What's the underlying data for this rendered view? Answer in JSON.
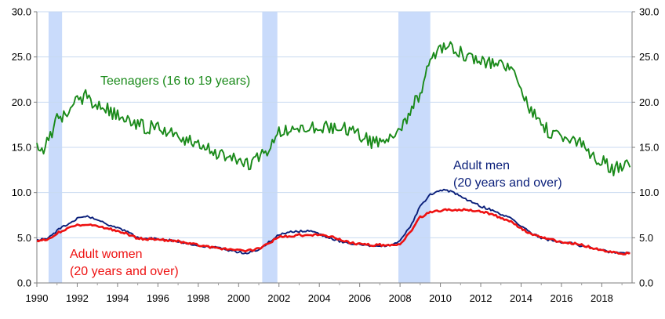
{
  "chart_data": {
    "type": "line",
    "title": "",
    "xlabel": "",
    "ylabel": "",
    "xlim": [
      1990,
      2019.5
    ],
    "ylim": [
      0,
      30
    ],
    "grid": true,
    "x_ticks": [
      1990,
      1992,
      1994,
      1996,
      1998,
      2000,
      2002,
      2004,
      2006,
      2008,
      2010,
      2012,
      2014,
      2016,
      2018
    ],
    "x_tick_labels": [
      "1990",
      "1992",
      "1994",
      "1996",
      "1998",
      "2000",
      "2002",
      "2004",
      "2006",
      "2008",
      "2010",
      "2012",
      "2014",
      "2016",
      "2018"
    ],
    "y_ticks": [
      0,
      5,
      10,
      15,
      20,
      25,
      30
    ],
    "y_tick_labels": [
      "0.0",
      "5.0",
      "10.0",
      "15.0",
      "20.0",
      "25.0",
      "30.0"
    ],
    "recessions": [
      {
        "start": 1990.58,
        "end": 1991.25
      },
      {
        "start": 2001.17,
        "end": 2001.92
      },
      {
        "start": 2007.92,
        "end": 2009.5
      }
    ],
    "series": [
      {
        "name": "Teenagers (16 to 19 years)",
        "color": "#1a8a1a",
        "x": [
          1990.0,
          1990.25,
          1990.5,
          1990.75,
          1991.0,
          1991.25,
          1991.5,
          1991.75,
          1992.0,
          1992.25,
          1992.5,
          1992.75,
          1993.0,
          1993.25,
          1993.5,
          1993.75,
          1994.0,
          1994.5,
          1995.0,
          1995.5,
          1996.0,
          1996.5,
          1997.0,
          1997.5,
          1998.0,
          1998.5,
          1999.0,
          1999.5,
          2000.0,
          2000.5,
          2001.0,
          2001.5,
          2002.0,
          2002.5,
          2003.0,
          2003.5,
          2004.0,
          2004.5,
          2005.0,
          2005.5,
          2006.0,
          2006.5,
          2007.0,
          2007.5,
          2008.0,
          2008.5,
          2009.0,
          2009.5,
          2010.0,
          2010.5,
          2011.0,
          2011.5,
          2012.0,
          2012.5,
          2013.0,
          2013.5,
          2014.0,
          2014.5,
          2015.0,
          2015.5,
          2016.0,
          2016.5,
          2017.0,
          2017.5,
          2018.0,
          2018.5,
          2019.0,
          2019.4
        ],
        "values": [
          15.0,
          14.5,
          15.5,
          16.8,
          18.0,
          18.5,
          19.0,
          19.5,
          20.0,
          20.5,
          20.8,
          20.0,
          19.8,
          19.5,
          19.2,
          18.8,
          18.5,
          17.8,
          17.5,
          17.2,
          17.2,
          16.8,
          16.2,
          15.8,
          15.2,
          14.8,
          14.2,
          14.0,
          13.4,
          13.2,
          13.8,
          14.8,
          16.5,
          17.0,
          17.2,
          17.5,
          17.0,
          17.2,
          17.4,
          17.0,
          16.5,
          15.6,
          15.8,
          16.0,
          16.5,
          19.0,
          21.0,
          24.5,
          26.2,
          26.0,
          25.5,
          25.0,
          24.8,
          24.2,
          24.0,
          23.5,
          21.5,
          19.0,
          17.5,
          16.5,
          16.0,
          16.0,
          15.5,
          14.0,
          13.5,
          12.5,
          13.0,
          12.8
        ]
      },
      {
        "name": "Adult men (20 years and over)",
        "color": "#0a1f7a",
        "x": [
          1990.0,
          1990.5,
          1991.0,
          1991.5,
          1992.0,
          1992.5,
          1993.0,
          1993.5,
          1994.0,
          1994.5,
          1995.0,
          1996.0,
          1997.0,
          1998.0,
          1999.0,
          2000.0,
          2000.5,
          2001.0,
          2001.5,
          2002.0,
          2002.5,
          2003.0,
          2003.5,
          2004.0,
          2004.5,
          2005.0,
          2005.5,
          2006.0,
          2006.5,
          2007.0,
          2007.5,
          2008.0,
          2008.5,
          2009.0,
          2009.5,
          2010.0,
          2010.5,
          2011.0,
          2011.5,
          2012.0,
          2012.5,
          2013.0,
          2013.5,
          2014.0,
          2014.5,
          2015.0,
          2015.5,
          2016.0,
          2016.5,
          2017.0,
          2017.5,
          2018.0,
          2018.5,
          2019.0,
          2019.4
        ],
        "values": [
          4.8,
          4.8,
          5.8,
          6.5,
          7.1,
          7.3,
          7.0,
          6.5,
          6.1,
          5.6,
          5.0,
          4.9,
          4.6,
          4.1,
          3.9,
          3.4,
          3.3,
          3.7,
          4.5,
          5.4,
          5.6,
          5.7,
          5.8,
          5.4,
          5.0,
          4.6,
          4.4,
          4.3,
          4.1,
          4.1,
          4.2,
          4.7,
          6.2,
          8.5,
          9.8,
          10.3,
          10.1,
          9.6,
          9.0,
          8.5,
          8.1,
          7.6,
          7.2,
          6.3,
          5.5,
          5.0,
          4.7,
          4.5,
          4.4,
          4.1,
          3.9,
          3.6,
          3.4,
          3.3,
          3.3
        ]
      },
      {
        "name": "Adult women (20 years and over)",
        "color": "#ee1111",
        "x": [
          1990.0,
          1990.5,
          1991.0,
          1991.5,
          1992.0,
          1992.5,
          1993.0,
          1993.5,
          1994.0,
          1994.5,
          1995.0,
          1996.0,
          1997.0,
          1998.0,
          1999.0,
          2000.0,
          2000.5,
          2001.0,
          2001.5,
          2002.0,
          2002.5,
          2003.0,
          2003.5,
          2004.0,
          2004.5,
          2005.0,
          2005.5,
          2006.0,
          2006.5,
          2007.0,
          2007.5,
          2008.0,
          2008.5,
          2009.0,
          2009.5,
          2010.0,
          2010.5,
          2011.0,
          2011.5,
          2012.0,
          2012.5,
          2013.0,
          2013.5,
          2014.0,
          2014.5,
          2015.0,
          2015.5,
          2016.0,
          2016.5,
          2017.0,
          2017.5,
          2018.0,
          2018.5,
          2019.0,
          2019.4
        ],
        "values": [
          4.7,
          4.8,
          5.5,
          6.0,
          6.4,
          6.5,
          6.3,
          6.0,
          5.8,
          5.4,
          4.9,
          4.8,
          4.6,
          4.2,
          3.8,
          3.6,
          3.6,
          3.8,
          4.4,
          5.1,
          5.2,
          5.3,
          5.3,
          5.3,
          5.2,
          4.8,
          4.5,
          4.3,
          4.2,
          4.2,
          4.2,
          4.3,
          5.6,
          7.3,
          7.8,
          8.0,
          8.1,
          8.1,
          8.1,
          7.9,
          7.6,
          7.2,
          6.8,
          6.0,
          5.4,
          5.0,
          4.8,
          4.5,
          4.4,
          4.2,
          3.9,
          3.6,
          3.4,
          3.2,
          3.3
        ]
      }
    ],
    "annotations": [
      {
        "id": "teen",
        "lines": [
          "Teenagers (16 to 19 years)"
        ],
        "color": "#1a8a1a"
      },
      {
        "id": "men",
        "lines": [
          "Adult men",
          "(20 years and over)"
        ],
        "color": "#0a1f7a"
      },
      {
        "id": "women",
        "lines": [
          "Adult women",
          "(20 years and over)"
        ],
        "color": "#ee1111"
      }
    ]
  }
}
